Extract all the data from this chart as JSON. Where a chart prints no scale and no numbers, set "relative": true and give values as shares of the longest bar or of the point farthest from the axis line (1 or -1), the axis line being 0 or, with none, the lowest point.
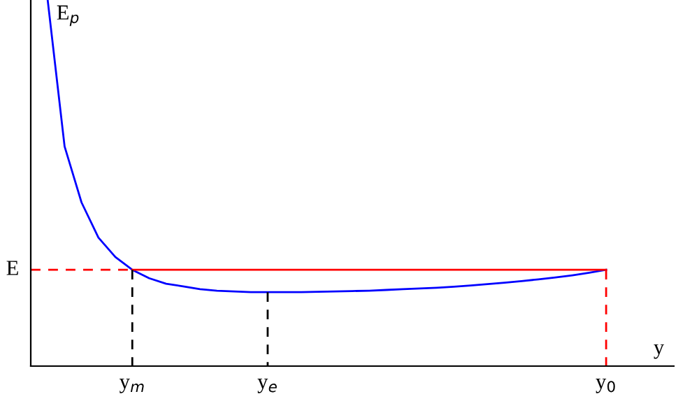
{
  "chart_data": {
    "type": "line",
    "relative": true,
    "ylabel": "E$_{p}$",
    "xlabel": "y",
    "categories": [
      null,
      null,
      null,
      null,
      null,
      null,
      "y$_{m}$",
      null,
      null,
      null,
      null,
      null,
      null,
      null,
      "y$_{e}$",
      null,
      null,
      null,
      null,
      null,
      null,
      null,
      null,
      null,
      null,
      null,
      null,
      null,
      null,
      null,
      null,
      null,
      null,
      null,
      "y$_{0}$",
      null,
      null,
      null,
      null
    ],
    "annotations": [
      "E"
    ],
    "grid": false,
    "marker": "none",
    "series": [
      {
        "color": "#0000ff",
        "line_style": "solid",
        "values": [
          null,
          1.0,
          0.6,
          0.447,
          0.351,
          0.298,
          0.263,
          0.24,
          0.225,
          0.218,
          0.21,
          0.206,
          0.204,
          0.202,
          0.202,
          0.202,
          0.202,
          0.203,
          0.204,
          0.205,
          0.206,
          0.208,
          0.21,
          0.212,
          0.214,
          0.217,
          0.22,
          0.224,
          0.228,
          0.232,
          0.237,
          0.242,
          0.248,
          0.255,
          0.263,
          null,
          null,
          null,
          null
        ]
      },
      {
        "color": "#ff0000",
        "line_style": "dashed",
        "values": [
          0.263,
          0.263,
          0.263,
          0.263,
          0.263,
          0.263,
          0.263,
          null,
          null,
          null,
          null,
          null,
          null,
          null,
          null,
          null,
          null,
          null,
          null,
          null,
          null,
          null,
          null,
          null,
          null,
          null,
          null,
          null,
          null,
          null,
          null,
          null,
          null,
          null,
          null,
          null,
          null,
          null,
          null
        ]
      },
      {
        "color": "#ff0000",
        "line_style": "solid",
        "values": [
          null,
          null,
          null,
          null,
          null,
          null,
          0.263,
          0.263,
          0.263,
          0.263,
          0.263,
          0.263,
          0.263,
          0.263,
          0.263,
          0.263,
          0.263,
          0.263,
          0.263,
          0.263,
          0.263,
          0.263,
          0.263,
          0.263,
          0.263,
          0.263,
          0.263,
          0.263,
          0.263,
          0.263,
          0.263,
          0.263,
          0.263,
          0.263,
          0.263,
          null,
          null,
          null,
          null
        ]
      },
      {
        "color": "#ff0000",
        "line_style": "dashed",
        "x": [
          "y$_{0}$",
          "y$_{0}$"
        ],
        "values": [
          0.263,
          0
        ]
      },
      {
        "color": "#000000",
        "line_style": "dashed",
        "x": [
          "y$_{m}$",
          "y$_{m}$"
        ],
        "values": [
          0.263,
          0
        ]
      },
      {
        "color": "#000000",
        "line_style": "dashed",
        "x": [
          "y$_{e}$",
          "y$_{e}$"
        ],
        "values": [
          0.202,
          0
        ]
      }
    ]
  }
}
